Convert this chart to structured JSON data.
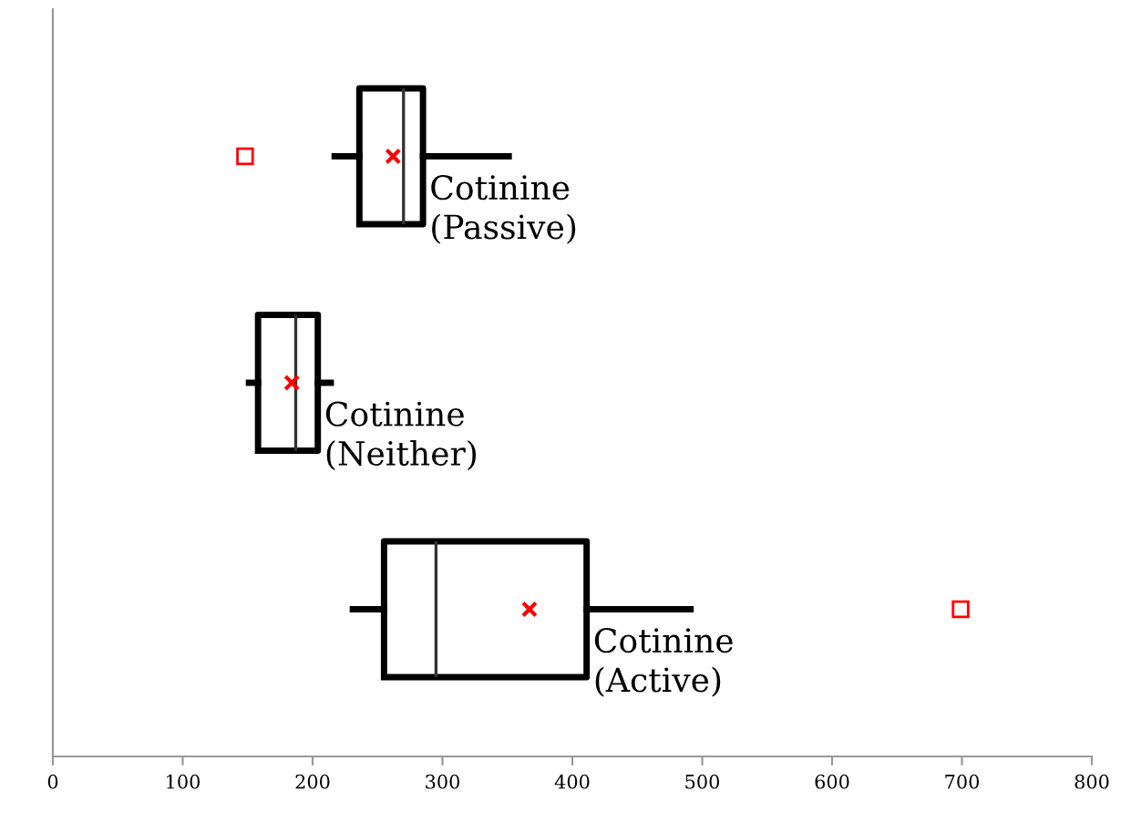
{
  "chart_data": {
    "type": "box",
    "orientation": "horizontal",
    "categories": [
      null,
      null,
      null
    ],
    "series": [
      {
        "color": "#000000",
        "boxes": [
          {
            "low": 217,
            "q1": 236,
            "median": 270,
            "q3": 285,
            "high": 351,
            "mean": 262,
            "outliers": [
              148
            ]
          },
          {
            "low": 151,
            "q1": 158,
            "median": 187,
            "q3": 204,
            "high": 214,
            "mean": 184
          },
          {
            "low": 231,
            "q1": 255,
            "median": 295,
            "q3": 411,
            "high": 491,
            "mean": 367,
            "outliers": [
              699
            ]
          }
        ]
      }
    ],
    "annotations": [
      "Cotinine\n(Passive)",
      "Cotinine\n(Neither)",
      "Cotinine\n(Active)"
    ],
    "xlim": [
      0,
      800
    ],
    "xticks": [
      0,
      100,
      200,
      300,
      400,
      500,
      600,
      700,
      800
    ],
    "tick_labels": "x"
  }
}
